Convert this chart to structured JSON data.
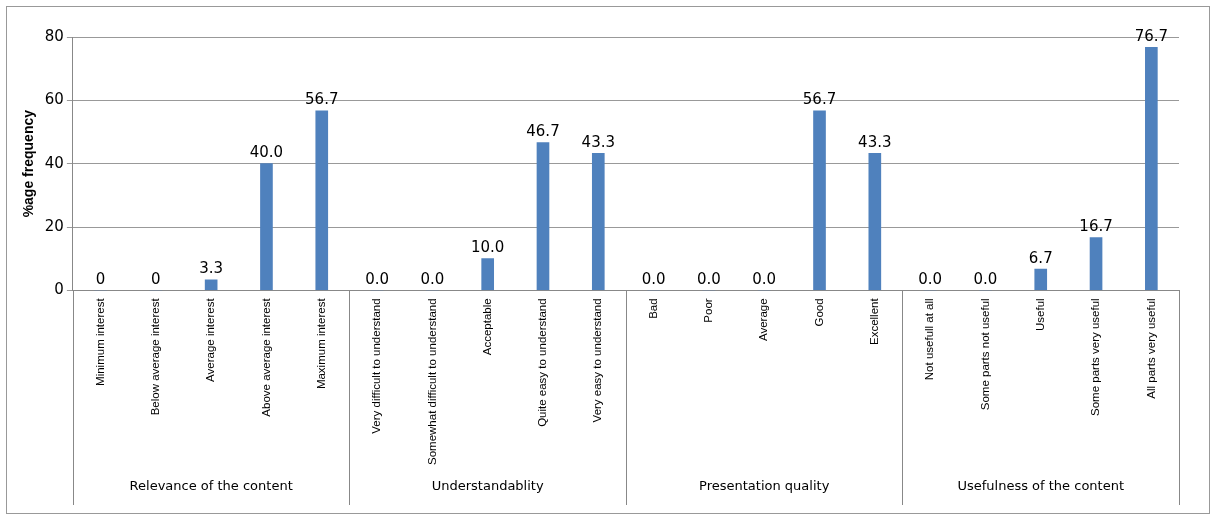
{
  "chart_data": {
    "type": "bar",
    "ylabel": "%age frequency",
    "categories": [
      "Minimum interest",
      "Below average interest",
      "Average interest",
      "Above average interest",
      "Maximum interest",
      "Very difficult to understand",
      "Somewhat difficult to understand",
      "Acceptable",
      "Quite easy to understand",
      "Very easy to understand",
      "Bad",
      "Poor",
      "Average",
      "Good",
      "Excellent",
      "Not usefull at all",
      "Some parts not useful",
      "Useful",
      "Some parts very useful",
      "All parts very useful"
    ],
    "values": [
      0,
      0,
      3.3,
      40.0,
      56.7,
      0,
      0,
      10.0,
      46.7,
      43.3,
      0,
      0,
      0,
      56.7,
      43.3,
      0,
      0,
      6.7,
      16.7,
      76.7
    ],
    "value_labels": [
      "0",
      "0",
      "3.3",
      "40.0",
      "56.7",
      "0.0",
      "0.0",
      "10.0",
      "46.7",
      "43.3",
      "0.0",
      "0.0",
      "0.0",
      "56.7",
      "43.3",
      "0.0",
      "0.0",
      "6.7",
      "16.7",
      "76.7"
    ],
    "color": "#4f81bd",
    "ylim": [
      0,
      80
    ],
    "yticks": [
      0,
      20,
      40,
      60,
      80
    ],
    "grid": "y",
    "annotations": [
      "Relevance of the content",
      "Understandablity",
      "Presentation quality",
      "Usefulness of the content"
    ]
  }
}
